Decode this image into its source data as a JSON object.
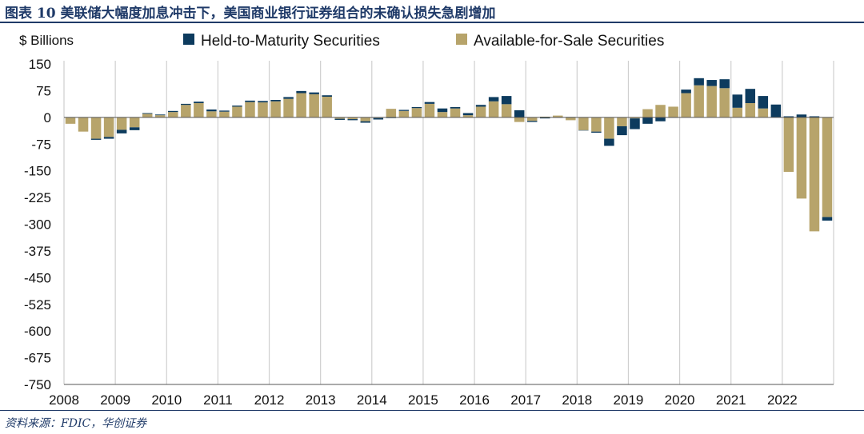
{
  "figure": {
    "title": "图表 10  美联储大幅度加息冲击下，美国商业银行证券组合的未确认损失急剧增加",
    "source": "资料来源：FDIC，华创证券"
  },
  "colors": {
    "htm": "#0d3b5e",
    "afs": "#b7a46b",
    "title": "#1f3a68"
  },
  "chart_data": {
    "type": "bar",
    "stacked": true,
    "ylabel": "$ Billions",
    "ylim": [
      -750,
      150
    ],
    "yticks": [
      150,
      75,
      0,
      -75,
      -150,
      -225,
      -300,
      -375,
      -450,
      -525,
      -600,
      -675,
      -750
    ],
    "xticks": [
      "2008",
      "2009",
      "2010",
      "2011",
      "2012",
      "2013",
      "2014",
      "2015",
      "2016",
      "2017",
      "2018",
      "2019",
      "2020",
      "2021",
      "2022"
    ],
    "legend_position": "top",
    "grid": "vertical year separators",
    "categories": [
      "2008Q1",
      "2008Q2",
      "2008Q3",
      "2008Q4",
      "2009Q1",
      "2009Q2",
      "2009Q3",
      "2009Q4",
      "2010Q1",
      "2010Q2",
      "2010Q3",
      "2010Q4",
      "2011Q1",
      "2011Q2",
      "2011Q3",
      "2011Q4",
      "2012Q1",
      "2012Q2",
      "2012Q3",
      "2012Q4",
      "2013Q1",
      "2013Q2",
      "2013Q3",
      "2013Q4",
      "2014Q1",
      "2014Q2",
      "2014Q3",
      "2014Q4",
      "2015Q1",
      "2015Q2",
      "2015Q3",
      "2015Q4",
      "2016Q1",
      "2016Q2",
      "2016Q3",
      "2016Q4",
      "2017Q1",
      "2017Q2",
      "2017Q3",
      "2017Q4",
      "2018Q1",
      "2018Q2",
      "2018Q3",
      "2018Q4",
      "2019Q1",
      "2019Q2",
      "2019Q3",
      "2019Q4",
      "2020Q1",
      "2020Q2",
      "2020Q3",
      "2020Q4",
      "2021Q1",
      "2021Q2",
      "2021Q3",
      "2021Q4",
      "2022Q1",
      "2022Q2",
      "2022Q3",
      "2022Q4"
    ],
    "series": [
      {
        "name": "Held-to-Maturity Securities",
        "values": [
          0,
          0,
          -3,
          -5,
          -10,
          -8,
          2,
          2,
          3,
          3,
          4,
          5,
          3,
          3,
          4,
          4,
          4,
          5,
          6,
          5,
          4,
          -3,
          -3,
          -4,
          -4,
          -2,
          3,
          3,
          5,
          10,
          4,
          6,
          5,
          12,
          23,
          20,
          -3,
          -3,
          -1,
          1,
          -1,
          -3,
          -20,
          -25,
          -30,
          -18,
          -11,
          -1,
          10,
          20,
          17,
          25,
          37,
          40,
          35,
          36,
          3,
          8,
          3,
          -10
        ]
      },
      {
        "name": "Available-for-Sale Securities",
        "values": [
          -18,
          -40,
          -60,
          -55,
          -35,
          -28,
          10,
          6,
          15,
          35,
          40,
          17,
          16,
          30,
          43,
          42,
          45,
          52,
          68,
          65,
          58,
          -4,
          -5,
          -11,
          -2,
          24,
          18,
          26,
          38,
          15,
          25,
          6,
          30,
          45,
          37,
          -13,
          -10,
          2,
          5,
          -8,
          -36,
          -40,
          -60,
          -25,
          -3,
          23,
          35,
          30,
          68,
          90,
          88,
          82,
          27,
          40,
          25,
          0,
          -153,
          -228,
          -320,
          -280
        ]
      }
    ]
  }
}
